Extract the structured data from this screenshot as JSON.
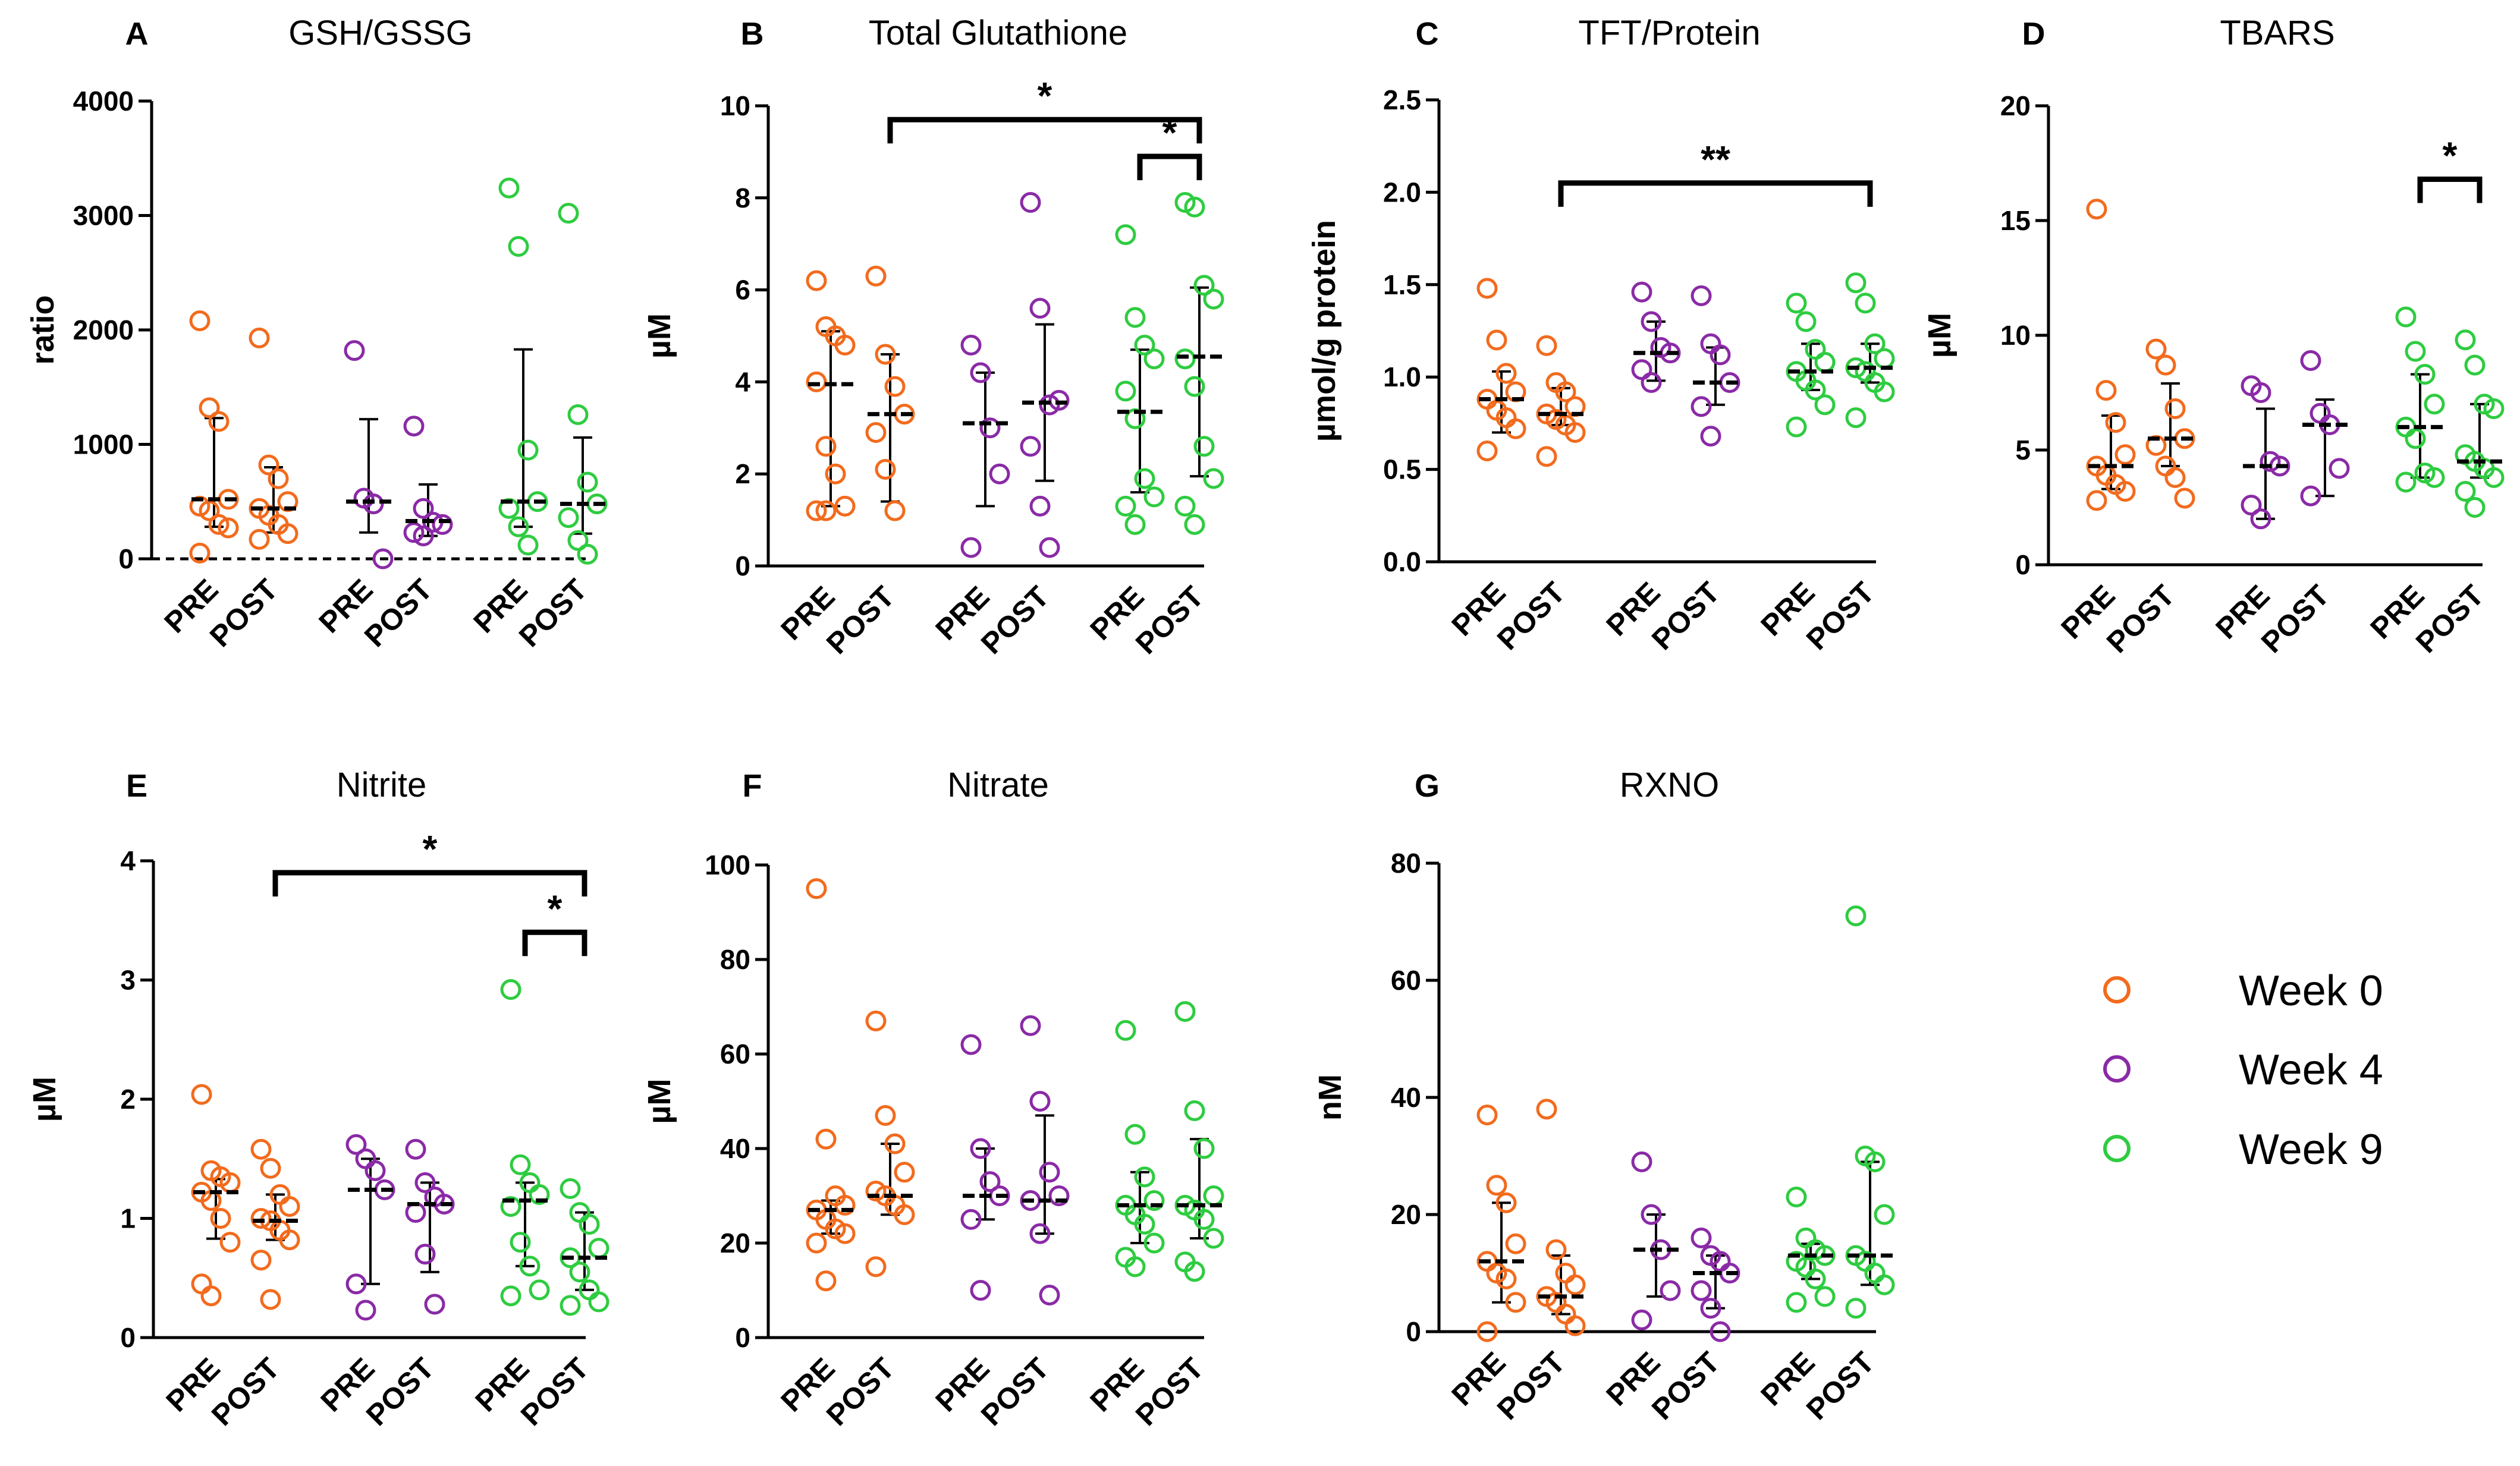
{
  "groups": [
    "Week 0",
    "Week 4",
    "Week 9"
  ],
  "colors": {
    "Week 0": "#f26b1d",
    "Week 4": "#8a2aa6",
    "Week 9": "#2ecc40"
  },
  "legend": {
    "items": [
      "Week 0",
      "Week 4",
      "Week 9"
    ]
  },
  "chart_data": [
    {
      "id": "A",
      "title": "GSH/GSSG",
      "type": "scatter",
      "ylabel": "ratio",
      "ylim": [
        0,
        4000
      ],
      "yticks": [
        0,
        1000,
        2000,
        3000,
        4000
      ],
      "ytick_labels": [
        "0",
        "1000",
        "2000",
        "3000",
        "4000"
      ],
      "categories": [
        "PRE",
        "POST",
        "PRE",
        "POST",
        "PRE",
        "POST"
      ],
      "series": [
        {
          "group": "Week 0",
          "time": "PRE",
          "median": 520,
          "q1": 280,
          "q3": 1230,
          "points": [
            2080,
            1320,
            1200,
            520,
            460,
            420,
            300,
            270,
            50
          ]
        },
        {
          "group": "Week 0",
          "time": "POST",
          "median": 440,
          "q1": 230,
          "q3": 800,
          "points": [
            1930,
            820,
            700,
            500,
            440,
            380,
            300,
            220,
            170
          ]
        },
        {
          "group": "Week 4",
          "time": "PRE",
          "median": 500,
          "q1": 230,
          "q3": 1220,
          "points": [
            1820,
            530,
            480,
            0
          ]
        },
        {
          "group": "Week 4",
          "time": "POST",
          "median": 330,
          "q1": 200,
          "q3": 650,
          "points": [
            1160,
            440,
            320,
            300,
            230,
            200
          ]
        },
        {
          "group": "Week 9",
          "time": "PRE",
          "median": 500,
          "q1": 280,
          "q3": 1830,
          "points": [
            3240,
            2730,
            950,
            500,
            440,
            280,
            120
          ]
        },
        {
          "group": "Week 9",
          "time": "POST",
          "median": 480,
          "q1": 220,
          "q3": 1060,
          "points": [
            3020,
            1260,
            670,
            480,
            360,
            160,
            40
          ]
        }
      ],
      "sig": []
    },
    {
      "id": "B",
      "title": "Total Glutathione",
      "type": "scatter",
      "ylabel": "µM",
      "ylim": [
        0,
        10
      ],
      "yticks": [
        0,
        2,
        4,
        6,
        8,
        10
      ],
      "ytick_labels": [
        "0",
        "2",
        "4",
        "6",
        "8",
        "10"
      ],
      "categories": [
        "PRE",
        "POST",
        "PRE",
        "POST",
        "PRE",
        "POST"
      ],
      "series": [
        {
          "group": "Week 0",
          "time": "PRE",
          "median": 3.95,
          "q1": 1.3,
          "q3": 5.1,
          "points": [
            6.2,
            5.2,
            5.0,
            4.8,
            4.0,
            2.6,
            2.0,
            1.3,
            1.2,
            1.2
          ]
        },
        {
          "group": "Week 0",
          "time": "POST",
          "median": 3.3,
          "q1": 1.4,
          "q3": 4.6,
          "points": [
            6.3,
            4.6,
            3.9,
            3.3,
            2.9,
            2.1,
            1.2
          ]
        },
        {
          "group": "Week 4",
          "time": "PRE",
          "median": 3.1,
          "q1": 1.3,
          "q3": 4.2,
          "points": [
            4.8,
            4.2,
            3.0,
            2.0,
            0.4
          ]
        },
        {
          "group": "Week 4",
          "time": "POST",
          "median": 3.55,
          "q1": 1.85,
          "q3": 5.25,
          "points": [
            7.9,
            5.6,
            3.5,
            3.6,
            2.6,
            1.3,
            0.4
          ]
        },
        {
          "group": "Week 9",
          "time": "PRE",
          "median": 3.35,
          "q1": 1.6,
          "q3": 4.7,
          "points": [
            7.2,
            5.4,
            4.8,
            4.5,
            3.8,
            3.2,
            1.9,
            1.5,
            1.3,
            0.9
          ]
        },
        {
          "group": "Week 9",
          "time": "POST",
          "median": 4.55,
          "q1": 1.95,
          "q3": 6.05,
          "points": [
            7.9,
            7.8,
            6.1,
            5.8,
            4.5,
            3.9,
            2.6,
            1.9,
            1.3,
            0.9
          ]
        }
      ],
      "sig": [
        {
          "from": 1,
          "to": 5,
          "y": 9.7,
          "label": "*"
        },
        {
          "from": 4,
          "to": 5,
          "y": 8.9,
          "label": "*"
        }
      ]
    },
    {
      "id": "C",
      "title": "TFT/Protein",
      "type": "scatter",
      "ylabel": "µmol/g protein",
      "ylim": [
        0,
        2.5
      ],
      "yticks": [
        0,
        0.5,
        1.0,
        1.5,
        2.0,
        2.5
      ],
      "ytick_labels": [
        "0.0",
        "0.5",
        "1.0",
        "1.5",
        "2.0",
        "2.5"
      ],
      "categories": [
        "PRE",
        "POST",
        "PRE",
        "POST",
        "PRE",
        "POST"
      ],
      "series": [
        {
          "group": "Week 0",
          "time": "PRE",
          "median": 0.88,
          "q1": 0.7,
          "q3": 1.03,
          "points": [
            1.48,
            1.2,
            1.02,
            0.92,
            0.88,
            0.82,
            0.78,
            0.72,
            0.6
          ]
        },
        {
          "group": "Week 0",
          "time": "POST",
          "median": 0.8,
          "q1": 0.74,
          "q3": 0.94,
          "points": [
            1.17,
            0.97,
            0.92,
            0.84,
            0.8,
            0.77,
            0.74,
            0.7,
            0.57
          ]
        },
        {
          "group": "Week 4",
          "time": "PRE",
          "median": 1.13,
          "q1": 0.98,
          "q3": 1.3,
          "points": [
            1.46,
            1.3,
            1.16,
            1.13,
            1.04,
            0.97
          ]
        },
        {
          "group": "Week 4",
          "time": "POST",
          "median": 0.97,
          "q1": 0.85,
          "q3": 1.16,
          "points": [
            1.44,
            1.18,
            1.12,
            0.97,
            0.84,
            0.68
          ]
        },
        {
          "group": "Week 9",
          "time": "PRE",
          "median": 1.03,
          "q1": 0.93,
          "q3": 1.18,
          "points": [
            1.4,
            1.3,
            1.15,
            1.08,
            1.03,
            0.98,
            0.93,
            0.85,
            0.73
          ]
        },
        {
          "group": "Week 9",
          "time": "POST",
          "median": 1.05,
          "q1": 0.97,
          "q3": 1.18,
          "points": [
            1.51,
            1.4,
            1.18,
            1.1,
            1.05,
            1.03,
            0.97,
            0.92,
            0.78
          ]
        }
      ],
      "sig": [
        {
          "from": 1,
          "to": 5,
          "y": 2.05,
          "label": "**"
        }
      ]
    },
    {
      "id": "D",
      "title": "TBARS",
      "type": "scatter",
      "ylabel": "µM",
      "ylim": [
        0,
        20
      ],
      "yticks": [
        0,
        5,
        10,
        15,
        20
      ],
      "ytick_labels": [
        "0",
        "5",
        "10",
        "15",
        "20"
      ],
      "categories": [
        "PRE",
        "POST",
        "PRE",
        "POST",
        "PRE",
        "POST"
      ],
      "series": [
        {
          "group": "Week 0",
          "time": "PRE",
          "median": 4.3,
          "q1": 3.3,
          "q3": 6.5,
          "points": [
            15.5,
            7.6,
            6.2,
            4.8,
            4.3,
            3.9,
            3.5,
            3.2,
            2.8
          ]
        },
        {
          "group": "Week 0",
          "time": "POST",
          "median": 5.5,
          "q1": 4.3,
          "q3": 7.9,
          "points": [
            9.4,
            8.7,
            6.8,
            5.5,
            5.2,
            4.3,
            3.8,
            2.9
          ]
        },
        {
          "group": "Week 4",
          "time": "PRE",
          "median": 4.3,
          "q1": 2.0,
          "q3": 6.8,
          "points": [
            7.8,
            7.5,
            4.5,
            4.3,
            2.6,
            2.0
          ]
        },
        {
          "group": "Week 4",
          "time": "POST",
          "median": 6.1,
          "q1": 3.0,
          "q3": 7.2,
          "points": [
            8.9,
            6.6,
            6.1,
            4.2,
            3.0
          ]
        },
        {
          "group": "Week 9",
          "time": "PRE",
          "median": 6.0,
          "q1": 3.8,
          "q3": 8.3,
          "points": [
            10.8,
            9.3,
            8.3,
            7.0,
            6.0,
            5.5,
            4.0,
            3.8,
            3.6
          ]
        },
        {
          "group": "Week 9",
          "time": "POST",
          "median": 4.5,
          "q1": 3.8,
          "q3": 7.0,
          "points": [
            9.8,
            8.7,
            7.0,
            6.8,
            4.8,
            4.5,
            4.2,
            3.8,
            3.2,
            2.5
          ]
        }
      ],
      "sig": [
        {
          "from": 4,
          "to": 5,
          "y": 16.8,
          "label": "*"
        }
      ]
    },
    {
      "id": "E",
      "title": "Nitrite",
      "type": "scatter",
      "ylabel": "µM",
      "ylim": [
        0,
        4
      ],
      "yticks": [
        0,
        1,
        2,
        3,
        4
      ],
      "ytick_labels": [
        "0",
        "1",
        "2",
        "3",
        "4"
      ],
      "categories": [
        "PRE",
        "POST",
        "PRE",
        "POST",
        "PRE",
        "POST"
      ],
      "series": [
        {
          "group": "Week 0",
          "time": "PRE",
          "median": 1.22,
          "q1": 0.83,
          "q3": 1.33,
          "points": [
            2.04,
            1.4,
            1.35,
            1.3,
            1.22,
            1.15,
            1.0,
            0.8,
            0.45,
            0.35
          ]
        },
        {
          "group": "Week 0",
          "time": "POST",
          "median": 0.98,
          "q1": 0.82,
          "q3": 1.2,
          "points": [
            1.58,
            1.42,
            1.2,
            1.1,
            1.0,
            0.98,
            0.9,
            0.82,
            0.65,
            0.32
          ]
        },
        {
          "group": "Week 4",
          "time": "PRE",
          "median": 1.24,
          "q1": 0.45,
          "q3": 1.5,
          "points": [
            1.62,
            1.5,
            1.4,
            1.24,
            0.45,
            0.23
          ]
        },
        {
          "group": "Week 4",
          "time": "POST",
          "median": 1.12,
          "q1": 0.55,
          "q3": 1.3,
          "points": [
            1.58,
            1.3,
            1.18,
            1.12,
            1.05,
            0.7,
            0.28
          ]
        },
        {
          "group": "Week 9",
          "time": "PRE",
          "median": 1.15,
          "q1": 0.6,
          "q3": 1.3,
          "points": [
            2.92,
            1.45,
            1.3,
            1.2,
            1.1,
            0.8,
            0.6,
            0.4,
            0.35
          ]
        },
        {
          "group": "Week 9",
          "time": "POST",
          "median": 0.67,
          "q1": 0.4,
          "q3": 1.05,
          "points": [
            1.25,
            1.05,
            0.95,
            0.75,
            0.67,
            0.55,
            0.4,
            0.3,
            0.27
          ]
        }
      ],
      "sig": [
        {
          "from": 1,
          "to": 5,
          "y": 3.9,
          "label": "*"
        },
        {
          "from": 4,
          "to": 5,
          "y": 3.4,
          "label": "*"
        }
      ]
    },
    {
      "id": "F",
      "title": "Nitrate",
      "type": "scatter",
      "ylabel": "µM",
      "ylim": [
        0,
        100
      ],
      "yticks": [
        0,
        20,
        40,
        60,
        80,
        100
      ],
      "ytick_labels": [
        "0",
        "20",
        "40",
        "60",
        "80",
        "100"
      ],
      "categories": [
        "PRE",
        "POST",
        "PRE",
        "POST",
        "PRE",
        "POST"
      ],
      "series": [
        {
          "group": "Week 0",
          "time": "PRE",
          "median": 27,
          "q1": 22,
          "q3": 29,
          "points": [
            95,
            42,
            30,
            28,
            27,
            25,
            23,
            22,
            20,
            12
          ]
        },
        {
          "group": "Week 0",
          "time": "POST",
          "median": 30,
          "q1": 26,
          "q3": 41,
          "points": [
            67,
            47,
            41,
            35,
            31,
            30,
            28,
            26,
            15
          ]
        },
        {
          "group": "Week 4",
          "time": "PRE",
          "median": 30,
          "q1": 25,
          "q3": 40,
          "points": [
            62,
            40,
            33,
            30,
            25,
            10
          ]
        },
        {
          "group": "Week 4",
          "time": "POST",
          "median": 29,
          "q1": 22,
          "q3": 47,
          "points": [
            66,
            50,
            35,
            30,
            29,
            22,
            9
          ]
        },
        {
          "group": "Week 9",
          "time": "PRE",
          "median": 28,
          "q1": 20,
          "q3": 35,
          "points": [
            65,
            43,
            34,
            29,
            28,
            26,
            24,
            20,
            17,
            15
          ]
        },
        {
          "group": "Week 9",
          "time": "POST",
          "median": 28,
          "q1": 21,
          "q3": 42,
          "points": [
            69,
            48,
            40,
            30,
            28,
            27,
            25,
            21,
            16,
            14
          ]
        }
      ],
      "sig": []
    },
    {
      "id": "G",
      "title": "RXNO",
      "type": "scatter",
      "ylabel": "nM",
      "ylim": [
        0,
        80
      ],
      "yticks": [
        0,
        20,
        40,
        60,
        80
      ],
      "ytick_labels": [
        "0",
        "20",
        "40",
        "60",
        "80"
      ],
      "categories": [
        "PRE",
        "POST",
        "PRE",
        "POST",
        "PRE",
        "POST"
      ],
      "series": [
        {
          "group": "Week 0",
          "time": "PRE",
          "median": 12,
          "q1": 5,
          "q3": 22,
          "points": [
            37,
            25,
            22,
            15,
            12,
            10,
            9,
            5,
            0
          ]
        },
        {
          "group": "Week 0",
          "time": "POST",
          "median": 6,
          "q1": 3,
          "q3": 13,
          "points": [
            38,
            14,
            10,
            8,
            6,
            5,
            3,
            1
          ]
        },
        {
          "group": "Week 4",
          "time": "PRE",
          "median": 14,
          "q1": 6,
          "q3": 20,
          "points": [
            29,
            20,
            14,
            7,
            2
          ]
        },
        {
          "group": "Week 4",
          "time": "POST",
          "median": 10,
          "q1": 4,
          "q3": 13,
          "points": [
            16,
            13,
            12,
            10,
            7,
            4,
            0
          ]
        },
        {
          "group": "Week 9",
          "time": "PRE",
          "median": 13,
          "q1": 9,
          "q3": 15,
          "points": [
            23,
            16,
            14,
            13,
            12,
            11,
            9,
            6,
            5
          ]
        },
        {
          "group": "Week 9",
          "time": "POST",
          "median": 13,
          "q1": 8,
          "q3": 29,
          "points": [
            71,
            30,
            29,
            20,
            13,
            12,
            10,
            8,
            4
          ]
        }
      ],
      "sig": []
    }
  ]
}
